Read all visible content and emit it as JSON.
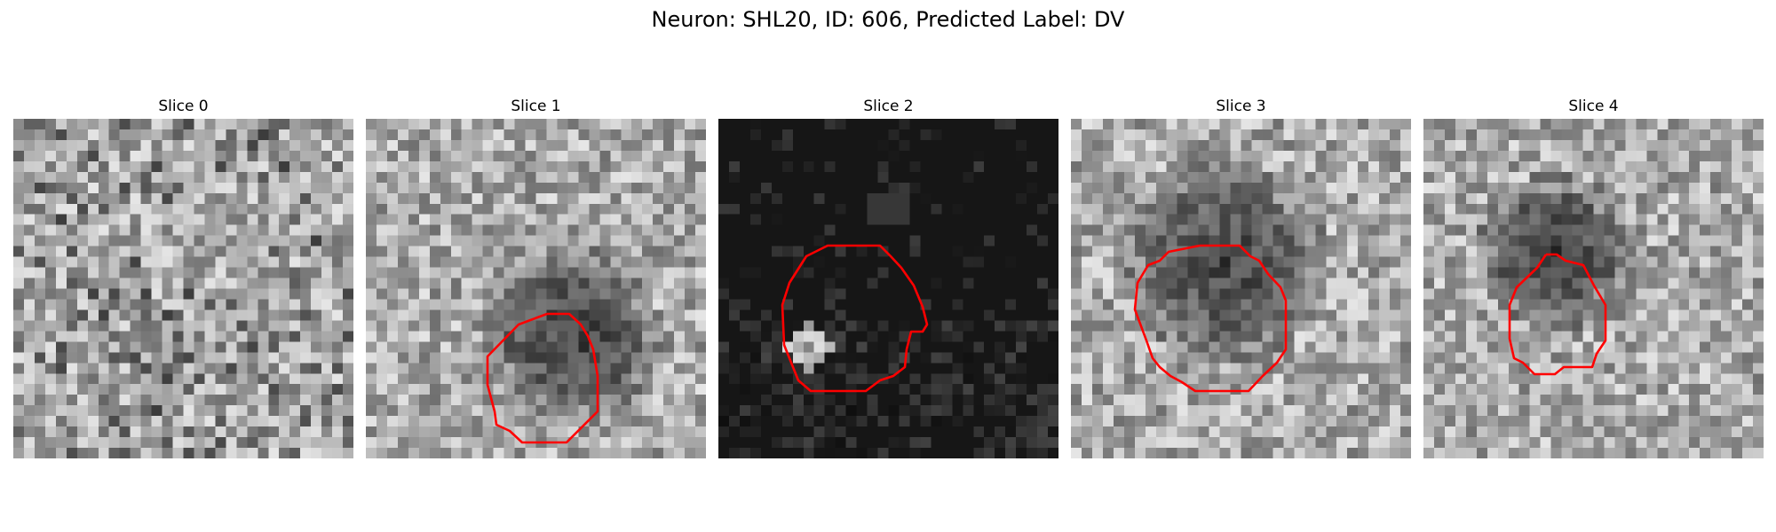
{
  "figure": {
    "title": "Neuron: SHL20, ID: 606, Predicted Label: DV"
  },
  "panels": [
    {
      "title": "Slice 0",
      "style": "noisy-gray",
      "seed": 11,
      "has_contour": false
    },
    {
      "title": "Slice 1",
      "style": "noisy-gray-dark-blob",
      "seed": 23,
      "has_contour": true
    },
    {
      "title": "Slice 2",
      "style": "dark-sparse",
      "seed": 37,
      "has_contour": true
    },
    {
      "title": "Slice 3",
      "style": "noisy-gray-dark-blob",
      "seed": 41,
      "has_contour": true
    },
    {
      "title": "Slice 4",
      "style": "noisy-gray-dark-blob",
      "seed": 53,
      "has_contour": true
    }
  ],
  "colors": {
    "contour": "#ff0000"
  }
}
